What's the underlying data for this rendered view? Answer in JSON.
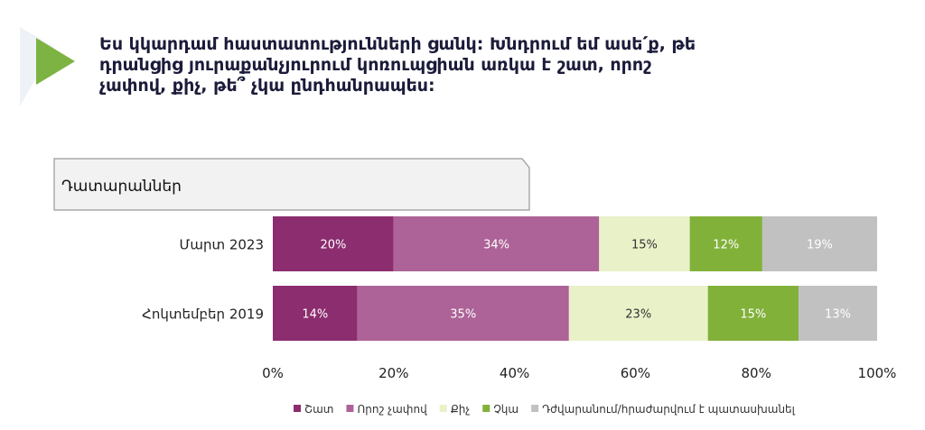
{
  "question": {
    "lines": [
      "Ես կկարդամ հաստատությունների ցանկ: Խնդրում եմ ասե՛ք, թե",
      "դրանցից յուրաքանչյուրում կոռուպցիան առկա է շատ, որոշ",
      "չափով, քիչ, թե՞ չկա ընդհանրապես:"
    ]
  },
  "chart_data": {
    "type": "bar",
    "orientation": "horizontal",
    "stacked": true,
    "group_label": "Դատարաններ",
    "categories": [
      "Մարտ 2023",
      "Հոկտեմբեր 2019"
    ],
    "series": [
      {
        "name": "Շատ",
        "color": "#8b2d6f",
        "label_color": "#ffffff",
        "values": [
          20,
          14
        ],
        "labels": [
          "20%",
          "14%"
        ]
      },
      {
        "name": "Որոշ չափով",
        "color": "#ad6397",
        "label_color": "#ffffff",
        "values": [
          34,
          35
        ],
        "labels": [
          "34%",
          "35%"
        ]
      },
      {
        "name": "Քիչ",
        "color": "#e9f1c8",
        "label_color": "#333333",
        "values": [
          15,
          23
        ],
        "labels": [
          "15%",
          "23%"
        ]
      },
      {
        "name": "Չկա",
        "color": "#82b13a",
        "label_color": "#ffffff",
        "values": [
          12,
          15
        ],
        "labels": [
          "12%",
          "15%"
        ]
      },
      {
        "name": "Դժվարանում/հրաժարվում է պատասխանել",
        "color": "#c1c1c1",
        "label_color": "#ffffff",
        "values": [
          19,
          13
        ],
        "labels": [
          "19%",
          "13%"
        ]
      }
    ],
    "xlim": [
      0,
      100
    ],
    "x_ticks": [
      "0%",
      "20%",
      "40%",
      "60%",
      "80%",
      "100%"
    ],
    "grid": false,
    "legend_position": "bottom"
  },
  "colors": {
    "accent": "#7cb342",
    "title": "#1b1b3a",
    "tab_fill": "#f2f2f2",
    "tab_stroke": "#999999"
  }
}
